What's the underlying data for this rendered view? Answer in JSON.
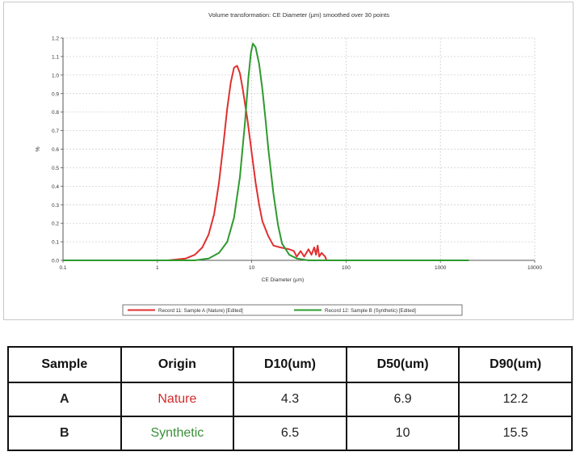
{
  "chart_data": {
    "type": "line",
    "title": "Volume transformation: CE Diameter (µm) smoothed over 30 points",
    "xlabel": "CE Diameter (µm)",
    "ylabel": "%",
    "x_scale": "log",
    "xlim": [
      0.1,
      10000
    ],
    "ylim": [
      0,
      1.2
    ],
    "x_ticks": [
      0.1,
      1,
      10,
      100,
      1000,
      10000
    ],
    "x_tick_labels": [
      "0.1",
      "1",
      "10",
      "100",
      "1000",
      "10000"
    ],
    "y_ticks": [
      0,
      0.1,
      0.2,
      0.3,
      0.4,
      0.5,
      0.6,
      0.7,
      0.8,
      0.9,
      1.0,
      1.1,
      1.2
    ],
    "y_tick_labels": [
      "0.0",
      "0.1",
      "0.2",
      "0.3",
      "0.4",
      "0.5",
      "0.6",
      "0.7",
      "0.8",
      "0.9",
      "1.0",
      "1.1",
      "1.2"
    ],
    "grid": true,
    "legend_position": "bottom",
    "series": [
      {
        "name": "Record 11: Sample A (Nature) [Edited]",
        "color": "#e03030",
        "points": [
          [
            0.1,
            0
          ],
          [
            1.3,
            0
          ],
          [
            2,
            0.01
          ],
          [
            2.5,
            0.03
          ],
          [
            3,
            0.07
          ],
          [
            3.5,
            0.14
          ],
          [
            4,
            0.25
          ],
          [
            4.5,
            0.42
          ],
          [
            5,
            0.62
          ],
          [
            5.5,
            0.82
          ],
          [
            6,
            0.96
          ],
          [
            6.5,
            1.04
          ],
          [
            7,
            1.05
          ],
          [
            7.5,
            1.01
          ],
          [
            8,
            0.93
          ],
          [
            9,
            0.76
          ],
          [
            10,
            0.58
          ],
          [
            11,
            0.42
          ],
          [
            12,
            0.3
          ],
          [
            13,
            0.21
          ],
          [
            15,
            0.13
          ],
          [
            17,
            0.08
          ],
          [
            20,
            0.07
          ],
          [
            25,
            0.06
          ],
          [
            28,
            0.05
          ],
          [
            30,
            0.02
          ],
          [
            33,
            0.05
          ],
          [
            36,
            0.02
          ],
          [
            40,
            0.06
          ],
          [
            43,
            0.03
          ],
          [
            46,
            0.07
          ],
          [
            48,
            0.03
          ],
          [
            50,
            0.08
          ],
          [
            52,
            0.02
          ],
          [
            55,
            0.04
          ],
          [
            60,
            0.02
          ],
          [
            62,
            0
          ]
        ]
      },
      {
        "name": "Record 12: Sample B (Synthetic) [Edited]",
        "color": "#2e9a2e",
        "points": [
          [
            0.1,
            0
          ],
          [
            2.5,
            0
          ],
          [
            3.5,
            0.01
          ],
          [
            4.5,
            0.04
          ],
          [
            5.5,
            0.1
          ],
          [
            6.5,
            0.23
          ],
          [
            7.5,
            0.45
          ],
          [
            8.5,
            0.75
          ],
          [
            9.2,
            0.98
          ],
          [
            9.8,
            1.12
          ],
          [
            10.3,
            1.17
          ],
          [
            11,
            1.15
          ],
          [
            12,
            1.06
          ],
          [
            13,
            0.92
          ],
          [
            14,
            0.76
          ],
          [
            15,
            0.6
          ],
          [
            17,
            0.36
          ],
          [
            19,
            0.19
          ],
          [
            21,
            0.09
          ],
          [
            25,
            0.03
          ],
          [
            30,
            0.01
          ],
          [
            40,
            0
          ],
          [
            2000,
            0
          ]
        ]
      }
    ]
  },
  "table": {
    "headers": [
      "Sample",
      "Origin",
      "D10(um)",
      "D50(um)",
      "D90(um)"
    ],
    "rows": [
      {
        "sample": "A",
        "origin": "Nature",
        "origin_color": "#d42a2a",
        "d10": "4.3",
        "d50": "6.9",
        "d90": "12.2"
      },
      {
        "sample": "B",
        "origin": "Synthetic",
        "origin_color": "#3a8f3a",
        "d10": "6.5",
        "d50": "10",
        "d90": "15.5"
      }
    ]
  }
}
